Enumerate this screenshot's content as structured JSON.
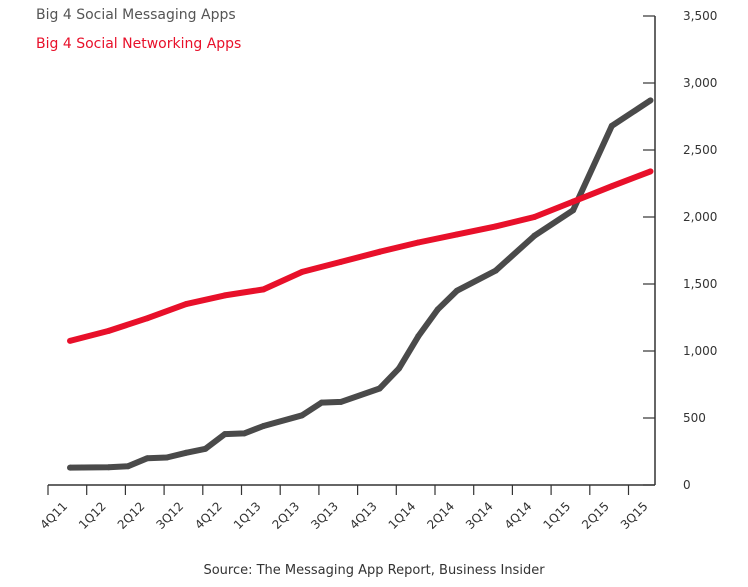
{
  "chart_data": {
    "type": "line",
    "categories": [
      "4Q11",
      "1Q12",
      "2Q12",
      "3Q12",
      "4Q12",
      "1Q13",
      "2Q13",
      "3Q13",
      "4Q13",
      "1Q14",
      "2Q14",
      "3Q14",
      "4Q14",
      "1Q15",
      "2Q15",
      "3Q15"
    ],
    "series": [
      {
        "name": "Big 4 Social Messaging Apps",
        "color": "#4a4a4a",
        "values": [
          [
            "4Q11",
            130
          ],
          [
            "1Q12",
            132
          ],
          [
            "1Q12+",
            140
          ],
          [
            "2Q12",
            200
          ],
          [
            "2Q12+",
            205
          ],
          [
            "3Q12",
            240
          ],
          [
            "3Q12+",
            270
          ],
          [
            "4Q12",
            380
          ],
          [
            "4Q12+",
            385
          ],
          [
            "1Q13",
            440
          ],
          [
            "2Q13",
            520
          ],
          [
            "2Q13+",
            615
          ],
          [
            "3Q13",
            620
          ],
          [
            "4Q13",
            720
          ],
          [
            "4Q13+",
            870
          ],
          [
            "1Q14",
            1110
          ],
          [
            "1Q14+",
            1310
          ],
          [
            "2Q14",
            1450
          ],
          [
            "3Q14",
            1600
          ],
          [
            "4Q14",
            1860
          ],
          [
            "1Q15",
            2050
          ],
          [
            "2Q15",
            2680
          ],
          [
            "3Q15",
            2870
          ]
        ]
      },
      {
        "name": "Big 4 Social Networking Apps",
        "color": "#e8102a",
        "values": [
          [
            "4Q11",
            1075
          ],
          [
            "1Q12",
            1150
          ],
          [
            "2Q12",
            1245
          ],
          [
            "3Q12",
            1350
          ],
          [
            "4Q12",
            1415
          ],
          [
            "1Q13",
            1460
          ],
          [
            "2Q13",
            1590
          ],
          [
            "3Q13",
            1665
          ],
          [
            "4Q13",
            1740
          ],
          [
            "1Q14",
            1810
          ],
          [
            "2Q14",
            1870
          ],
          [
            "3Q14",
            1930
          ],
          [
            "4Q14",
            2000
          ],
          [
            "1Q15",
            2115
          ],
          [
            "2Q15",
            2230
          ],
          [
            "3Q15",
            2340
          ]
        ]
      }
    ],
    "yticks": [
      0,
      500,
      1000,
      1500,
      2000,
      2500,
      3000,
      3500
    ],
    "ytick_labels": [
      "0",
      "500",
      "1,000",
      "1,500",
      "2,000",
      "2,500",
      "3,000",
      "3,500"
    ],
    "ylim": [
      0,
      3500
    ],
    "yaxis_side": "right",
    "legend_position": "top-left",
    "grid": false
  },
  "legend": {
    "messaging": "Big 4 Social Messaging Apps",
    "networking": "Big 4 Social Networking Apps"
  },
  "source": "Source: The Messaging App Report, Business Insider"
}
